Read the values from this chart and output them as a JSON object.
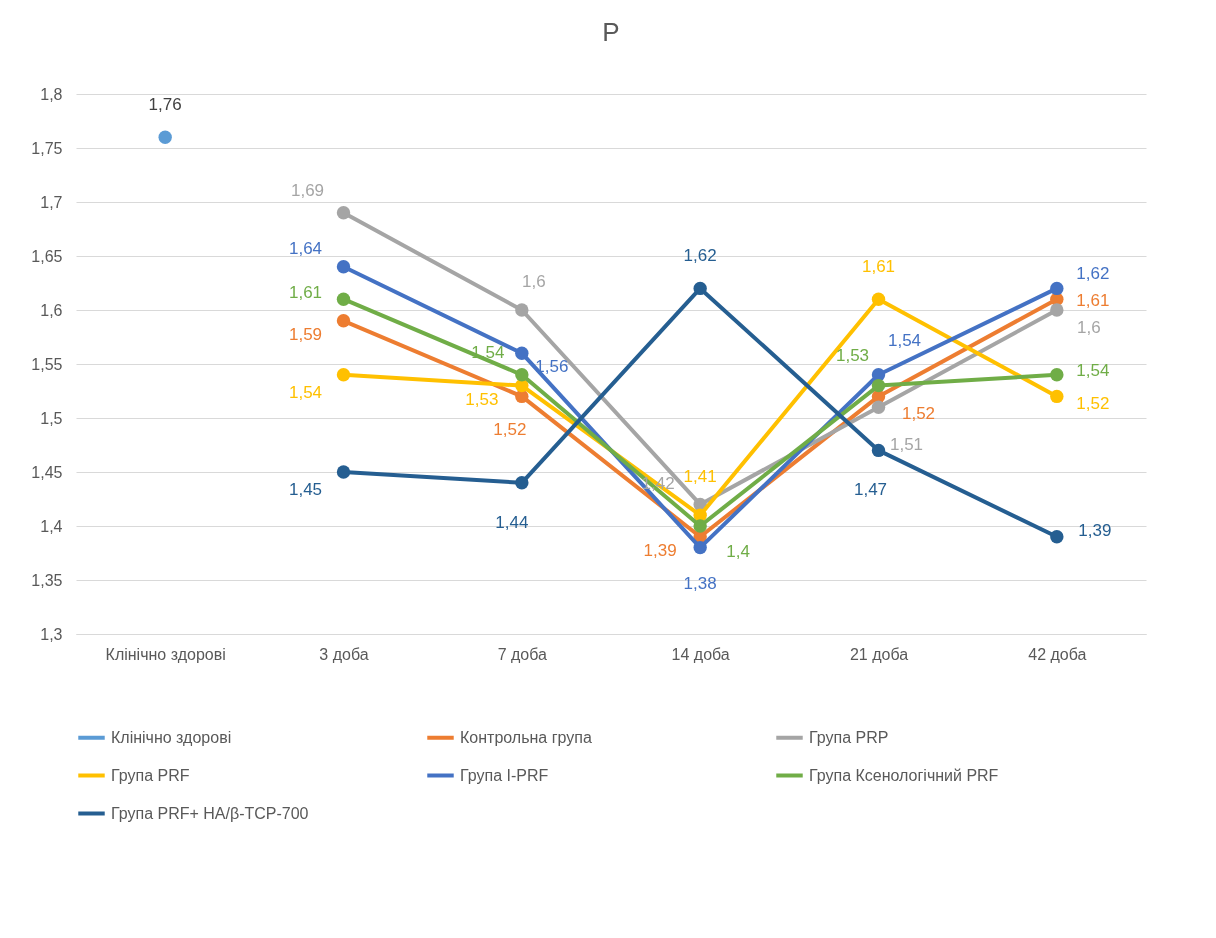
{
  "chart_data": {
    "type": "line",
    "title": "P",
    "categories": [
      "Клінічно здорові",
      "3 доба",
      "7 доба",
      "14 доба",
      "21 доба",
      "42 доба"
    ],
    "ylim": [
      1.3,
      1.8
    ],
    "yticks": [
      {
        "value": 1.3,
        "label": "1,3"
      },
      {
        "value": 1.35,
        "label": "1,35"
      },
      {
        "value": 1.4,
        "label": "1,4"
      },
      {
        "value": 1.45,
        "label": "1,45"
      },
      {
        "value": 1.5,
        "label": "1,5"
      },
      {
        "value": 1.55,
        "label": "1,55"
      },
      {
        "value": 1.6,
        "label": "1,6"
      },
      {
        "value": 1.65,
        "label": "1,65"
      },
      {
        "value": 1.7,
        "label": "1,7"
      },
      {
        "value": 1.75,
        "label": "1,75"
      },
      {
        "value": 1.8,
        "label": "1,8"
      }
    ],
    "grid": "y",
    "legend": "bottom",
    "marker": "circle",
    "series": [
      {
        "name": "Клінічно здорові",
        "color": "#5b9bd5",
        "values": [
          1.76,
          null,
          null,
          null,
          null,
          null
        ],
        "value_labels": [
          "1,76",
          null,
          null,
          null,
          null,
          null
        ]
      },
      {
        "name": "Контрольна група",
        "color": "#ed7d31",
        "values": [
          null,
          1.59,
          1.52,
          1.39,
          1.52,
          1.61
        ],
        "value_labels": [
          null,
          "1,59",
          "1,52",
          "1,39",
          "1,52",
          "1,61"
        ]
      },
      {
        "name": "Група PRP",
        "color": "#a5a5a5",
        "values": [
          null,
          1.69,
          1.6,
          1.42,
          1.51,
          1.6
        ],
        "value_labels": [
          null,
          "1,69",
          "1,6",
          "1,42",
          "1,51",
          "1,6"
        ]
      },
      {
        "name": "Група PRF",
        "color": "#ffc000",
        "values": [
          null,
          1.54,
          1.53,
          1.41,
          1.61,
          1.52
        ],
        "value_labels": [
          null,
          "1,54",
          "1,53",
          "1,41",
          "1,61",
          "1,52"
        ]
      },
      {
        "name": "Група I-PRF",
        "color": "#4472c4",
        "values": [
          null,
          1.64,
          1.56,
          1.38,
          1.54,
          1.62
        ],
        "value_labels": [
          null,
          "1,64",
          "1,56",
          "1,38",
          "1,54",
          "1,62"
        ]
      },
      {
        "name": "Група Ксенологічний PRF",
        "color": "#70ad47",
        "values": [
          null,
          1.61,
          1.54,
          1.4,
          1.53,
          1.54
        ],
        "value_labels": [
          null,
          "1,61",
          "1,54",
          "1,4",
          "1,53",
          "1,54"
        ]
      },
      {
        "name": "Група PRF+ HA/β-TCP-700",
        "color": "#255e91",
        "values": [
          null,
          1.45,
          1.44,
          1.62,
          1.47,
          1.39
        ],
        "value_labels": [
          null,
          "1,45",
          "1,44",
          "1,62",
          "1,47",
          "1,39"
        ]
      }
    ]
  }
}
